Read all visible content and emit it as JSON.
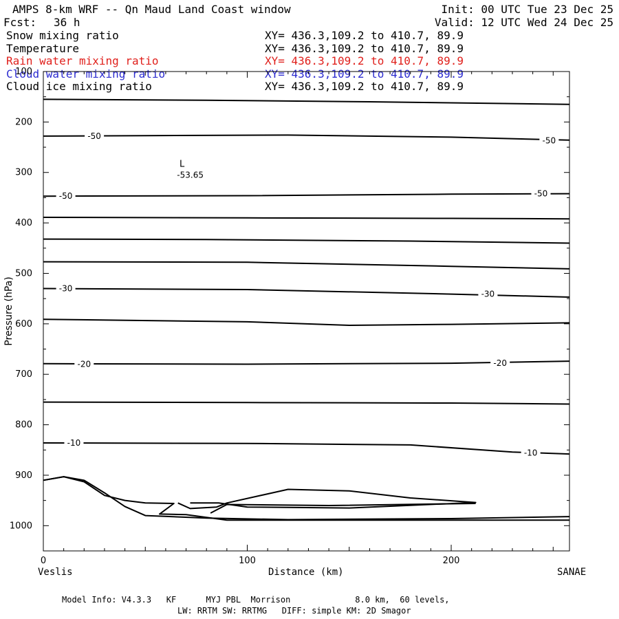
{
  "header": {
    "title": "AMPS 8-km WRF -- Qn Maud Land Coast window",
    "forecast_label": "Fcst:",
    "forecast_value": "36 h",
    "init": "Init: 00 UTC Tue 23 Dec 25",
    "valid": "Valid: 12 UTC Wed 24 Dec 25"
  },
  "fields": [
    {
      "name": "Snow mixing ratio",
      "xy": "XY= 436.3,109.2 to 410.7, 89.9",
      "color": "#000000"
    },
    {
      "name": "Temperature",
      "xy": "XY= 436.3,109.2 to 410.7, 89.9",
      "color": "#000000"
    },
    {
      "name": "Rain water mixing ratio",
      "xy": "XY= 436.3,109.2 to 410.7, 89.9",
      "color": "#e0201c"
    },
    {
      "name": "Cloud water mixing ratio",
      "xy": "XY= 436.3,109.2 to 410.7, 89.9",
      "color": "#2b2bd0"
    },
    {
      "name": "Cloud ice mixing ratio",
      "xy": "XY= 436.3,109.2 to 410.7, 89.9",
      "color": "#000000"
    }
  ],
  "footer": {
    "line1": "Model Info: V4.3.3   KF      MYJ PBL  Morrison             8.0 km,  60 levels,",
    "line2": "LW: RRTM SW: RRTMG   DIFF: simple KM: 2D Smagor"
  },
  "chart_data": {
    "type": "line",
    "xlabel": "Distance (km)",
    "ylabel": "Pressure (hPa)",
    "xlim": [
      0,
      258
    ],
    "ylim": [
      1050,
      100
    ],
    "x_ticks": [
      0,
      100,
      200
    ],
    "y_ticks": [
      100,
      200,
      300,
      400,
      500,
      600,
      700,
      800,
      900,
      1000
    ],
    "start_label": "Veslis",
    "end_label": "SANAE",
    "low_marker": {
      "symbol": "L",
      "value": "-53.65",
      "x": 68,
      "p": 300
    },
    "contours": [
      {
        "points": [
          [
            0,
            155
          ],
          [
            80,
            157
          ],
          [
            160,
            160
          ],
          [
            258,
            165
          ]
        ]
      },
      {
        "points": [
          [
            0,
            228
          ],
          [
            50,
            227
          ],
          [
            120,
            226
          ],
          [
            200,
            230
          ],
          [
            258,
            236
          ]
        ]
      },
      {
        "points": [
          [
            0,
            347
          ],
          [
            100,
            346
          ],
          [
            200,
            343
          ],
          [
            258,
            342
          ]
        ]
      },
      {
        "points": [
          [
            0,
            389
          ],
          [
            100,
            390
          ],
          [
            200,
            391
          ],
          [
            258,
            392
          ]
        ]
      },
      {
        "points": [
          [
            0,
            432
          ],
          [
            80,
            433
          ],
          [
            180,
            436
          ],
          [
            258,
            440
          ]
        ]
      },
      {
        "points": [
          [
            0,
            477
          ],
          [
            100,
            478
          ],
          [
            200,
            486
          ],
          [
            258,
            491
          ]
        ]
      },
      {
        "points": [
          [
            0,
            530
          ],
          [
            100,
            532
          ],
          [
            200,
            541
          ],
          [
            258,
            547
          ]
        ]
      },
      {
        "points": [
          [
            0,
            591
          ],
          [
            100,
            596
          ],
          [
            150,
            603
          ],
          [
            200,
            601
          ],
          [
            258,
            598
          ]
        ]
      },
      {
        "points": [
          [
            0,
            679
          ],
          [
            100,
            680
          ],
          [
            200,
            678
          ],
          [
            258,
            674
          ]
        ]
      },
      {
        "points": [
          [
            0,
            755
          ],
          [
            100,
            756
          ],
          [
            200,
            757
          ],
          [
            258,
            759
          ]
        ]
      },
      {
        "points": [
          [
            0,
            836
          ],
          [
            100,
            837
          ],
          [
            180,
            840
          ],
          [
            230,
            854
          ],
          [
            258,
            858
          ]
        ]
      },
      {
        "points": [
          [
            0,
            910
          ],
          [
            10,
            903
          ],
          [
            20,
            910
          ],
          [
            30,
            935
          ],
          [
            40,
            962
          ],
          [
            50,
            980
          ],
          [
            80,
            985
          ],
          [
            120,
            988
          ],
          [
            200,
            986
          ],
          [
            258,
            982
          ]
        ]
      },
      {
        "points": [
          [
            0,
            910
          ],
          [
            10,
            903
          ],
          [
            20,
            913
          ],
          [
            30,
            940
          ],
          [
            40,
            950
          ],
          [
            50,
            955
          ],
          [
            64,
            956
          ],
          [
            57,
            977
          ],
          [
            70,
            978
          ],
          [
            90,
            989
          ],
          [
            258,
            989
          ]
        ]
      },
      {
        "points": [
          [
            66,
            955
          ],
          [
            72,
            966
          ],
          [
            85,
            963
          ],
          [
            90,
            955
          ],
          [
            120,
            928
          ],
          [
            150,
            931
          ],
          [
            180,
            945
          ],
          [
            212,
            954
          ],
          [
            150,
            965
          ],
          [
            100,
            963
          ],
          [
            86,
            955
          ],
          [
            72,
            955
          ]
        ]
      },
      {
        "points": [
          [
            82,
            975
          ],
          [
            90,
            958
          ],
          [
            140,
            960
          ],
          [
            212,
            956
          ]
        ]
      }
    ],
    "contour_labels": [
      {
        "text": "-50",
        "x": 25,
        "p": 228
      },
      {
        "text": "-50",
        "x": 248,
        "p": 237
      },
      {
        "text": "-50",
        "x": 11,
        "p": 347
      },
      {
        "text": "-50",
        "x": 244,
        "p": 342
      },
      {
        "text": "-30",
        "x": 11,
        "p": 530
      },
      {
        "text": "-30",
        "x": 218,
        "p": 541
      },
      {
        "text": "-20",
        "x": 20,
        "p": 680
      },
      {
        "text": "-20",
        "x": 224,
        "p": 678
      },
      {
        "text": "-10",
        "x": 15,
        "p": 836
      },
      {
        "text": "-10",
        "x": 239,
        "p": 856
      }
    ]
  }
}
